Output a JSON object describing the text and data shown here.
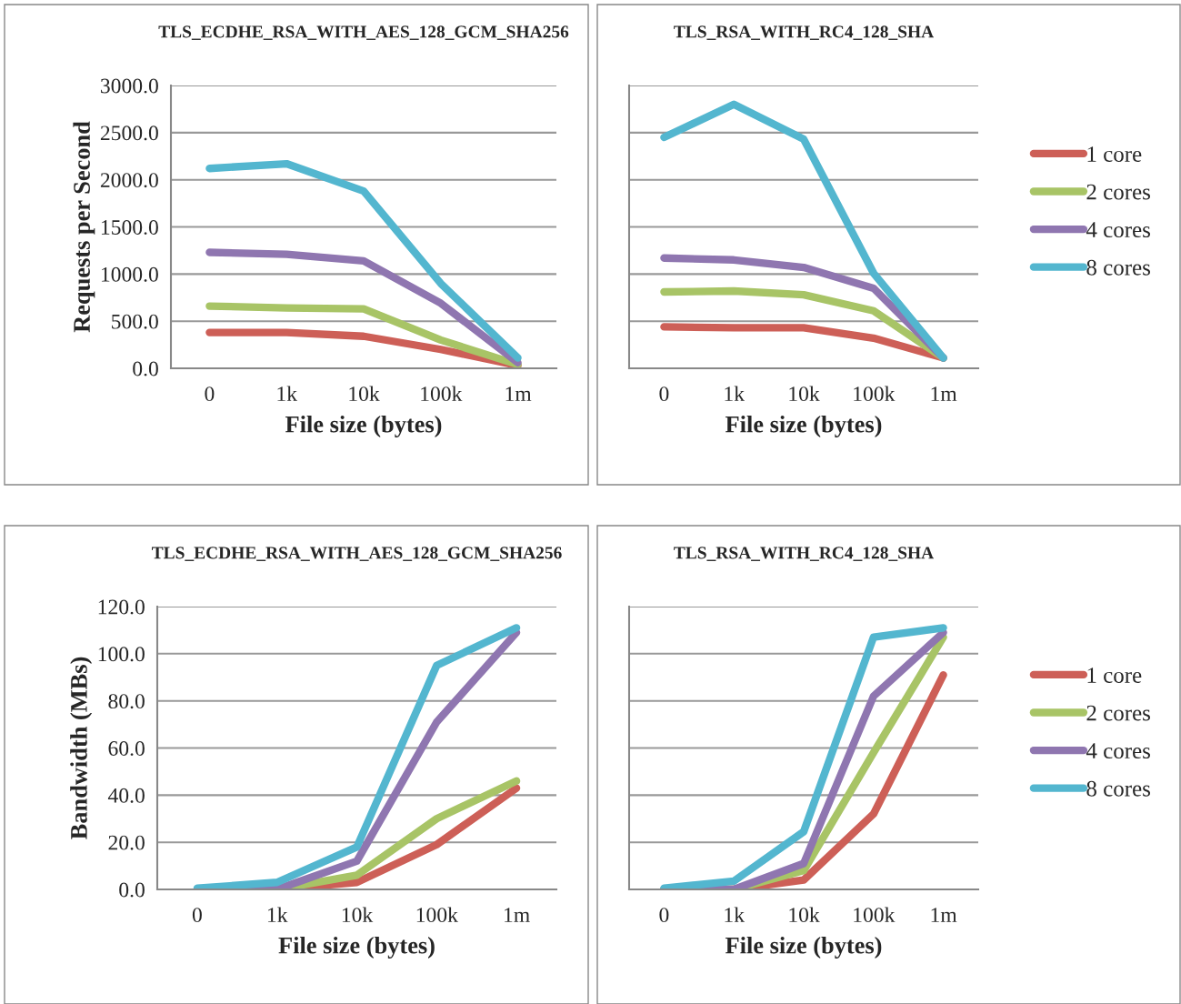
{
  "chart_data": [
    {
      "type": "line",
      "title": "TLS_ECDHE_RSA_WITH_AES_128_GCM_SHA256",
      "xlabel": "File size (bytes)",
      "ylabel": "Requests per Second",
      "categories": [
        "0",
        "1k",
        "10k",
        "100k",
        "1m"
      ],
      "ylim": [
        0,
        3000
      ],
      "yticks": [
        {
          "value": 0,
          "label": "0.0"
        },
        {
          "value": 500,
          "label": "500.0"
        },
        {
          "value": 1000,
          "label": "1000.0"
        },
        {
          "value": 1500,
          "label": "1500.0"
        },
        {
          "value": 2000,
          "label": "2000.0"
        },
        {
          "value": 2500,
          "label": "2500.0"
        },
        {
          "value": 3000,
          "label": "3000.0"
        }
      ],
      "grid": "y",
      "legend": false,
      "marker": "none",
      "line_style": "solid",
      "series": [
        {
          "color": "#cd5f57",
          "values": [
            380,
            380,
            340,
            200,
            30
          ]
        },
        {
          "color": "#a8c466",
          "values": [
            660,
            640,
            630,
            300,
            40
          ]
        },
        {
          "color": "#8f76b0",
          "values": [
            1230,
            1210,
            1140,
            690,
            60
          ]
        },
        {
          "color": "#53b6cf",
          "values": [
            2120,
            2170,
            1880,
            900,
            110
          ]
        }
      ]
    },
    {
      "type": "line",
      "title": "TLS_RSA_WITH_RC4_128_SHA",
      "xlabel": "File size (bytes)",
      "categories": [
        "0",
        "1k",
        "10k",
        "100k",
        "1m"
      ],
      "ylim": [
        0,
        3000
      ],
      "yticks": [
        0,
        500,
        1000,
        1500,
        2000,
        2500,
        3000
      ],
      "tick_labels": "x",
      "grid": "y",
      "legend": "right",
      "marker": "none",
      "line_style": "solid",
      "series": [
        {
          "name": "1 core",
          "color": "#cd5f57",
          "values": [
            440,
            430,
            430,
            320,
            110
          ]
        },
        {
          "name": "2 cores",
          "color": "#a8c466",
          "values": [
            810,
            820,
            780,
            610,
            110
          ]
        },
        {
          "name": "4 cores",
          "color": "#8f76b0",
          "values": [
            1170,
            1150,
            1070,
            850,
            110
          ]
        },
        {
          "name": "8 cores",
          "color": "#53b6cf",
          "values": [
            2450,
            2800,
            2430,
            1010,
            110
          ]
        }
      ]
    },
    {
      "type": "line",
      "title": "TLS_ECDHE_RSA_WITH_AES_128_GCM_SHA256",
      "xlabel": "File size (bytes)",
      "ylabel": "Bandwidth (MBs)",
      "categories": [
        "0",
        "1k",
        "10k",
        "100k",
        "1m"
      ],
      "ylim": [
        0,
        120
      ],
      "yticks": [
        {
          "value": 0,
          "label": "0.0"
        },
        {
          "value": 20,
          "label": "20.0"
        },
        {
          "value": 40,
          "label": "40.0"
        },
        {
          "value": 60,
          "label": "60.0"
        },
        {
          "value": 80,
          "label": "80.0"
        },
        {
          "value": 100,
          "label": "100.0"
        },
        {
          "value": 120,
          "label": "120.0"
        }
      ],
      "grid": "y",
      "legend": false,
      "marker": "none",
      "line_style": "solid",
      "series": [
        {
          "color": "#cd5f57",
          "values": [
            0,
            0,
            3,
            19,
            43
          ]
        },
        {
          "color": "#a8c466",
          "values": [
            0,
            0,
            6,
            30,
            46
          ]
        },
        {
          "color": "#8f76b0",
          "values": [
            0,
            0,
            12,
            71,
            109
          ]
        },
        {
          "color": "#53b6cf",
          "values": [
            0.5,
            3,
            18,
            95,
            111
          ]
        }
      ]
    },
    {
      "type": "line",
      "title": "TLS_RSA_WITH_RC4_128_SHA",
      "xlabel": "File size (bytes)",
      "categories": [
        "0",
        "1k",
        "10k",
        "100k",
        "1m"
      ],
      "ylim": [
        0,
        120
      ],
      "yticks": [
        0,
        20,
        40,
        60,
        80,
        100,
        120
      ],
      "tick_labels": "x",
      "grid": "y",
      "legend": "right",
      "marker": "none",
      "line_style": "solid",
      "series": [
        {
          "name": "1 core",
          "color": "#cd5f57",
          "values": [
            0,
            0,
            4,
            32,
            91
          ]
        },
        {
          "name": "2 cores",
          "color": "#a8c466",
          "values": [
            0,
            0,
            8,
            58,
            107
          ]
        },
        {
          "name": "4 cores",
          "color": "#8f76b0",
          "values": [
            0,
            0,
            11,
            82,
            109
          ]
        },
        {
          "name": "8 cores",
          "color": "#53b6cf",
          "values": [
            0.5,
            3.5,
            24.5,
            107,
            111
          ]
        }
      ]
    }
  ]
}
